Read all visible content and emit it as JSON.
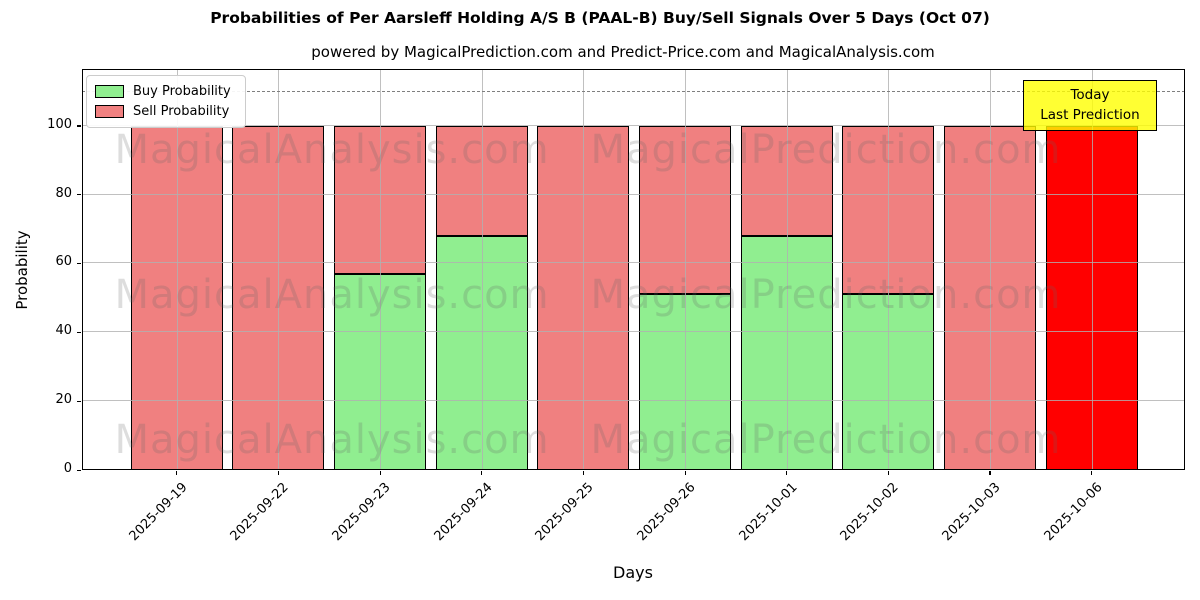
{
  "chart_data": {
    "type": "bar",
    "stacked": true,
    "title": "Probabilities of Per Aarsleff Holding A/S B (PAAL-B) Buy/Sell Signals Over 5 Days (Oct 07)",
    "subtitle": "powered by MagicalPrediction.com and Predict-Price.com and MagicalAnalysis.com",
    "xlabel": "Days",
    "ylabel": "Probability",
    "categories": [
      "2025-09-19",
      "2025-09-22",
      "2025-09-23",
      "2025-09-24",
      "2025-09-25",
      "2025-09-26",
      "2025-10-01",
      "2025-10-02",
      "2025-10-03",
      "2025-10-06"
    ],
    "series": [
      {
        "name": "Buy Probability",
        "color": "#90ee90",
        "values": [
          0,
          0,
          57,
          68,
          0,
          51,
          68,
          51,
          0,
          0
        ]
      },
      {
        "name": "Sell Probability",
        "color": "#f08080",
        "values": [
          100,
          100,
          43,
          32,
          100,
          49,
          32,
          49,
          100,
          0
        ]
      },
      {
        "name": "Today / Last Prediction",
        "color": "#ff0000",
        "values": [
          0,
          0,
          0,
          0,
          0,
          0,
          0,
          0,
          0,
          100
        ]
      }
    ],
    "ylim": [
      0,
      116.5
    ],
    "yticks": [
      0,
      20,
      40,
      60,
      80,
      100
    ],
    "dashed_reference_line_y": 110,
    "grid": true,
    "legend_position": "upper left",
    "bar_edge_color": "#000000",
    "grid_color": "#b0b0b0"
  },
  "annotation": {
    "line1": "Today",
    "line2": "Last Prediction"
  },
  "watermarks": {
    "left_text": "MagicalAnalysis.com",
    "right_text": "MagicalPrediction.com",
    "rows": 3
  }
}
